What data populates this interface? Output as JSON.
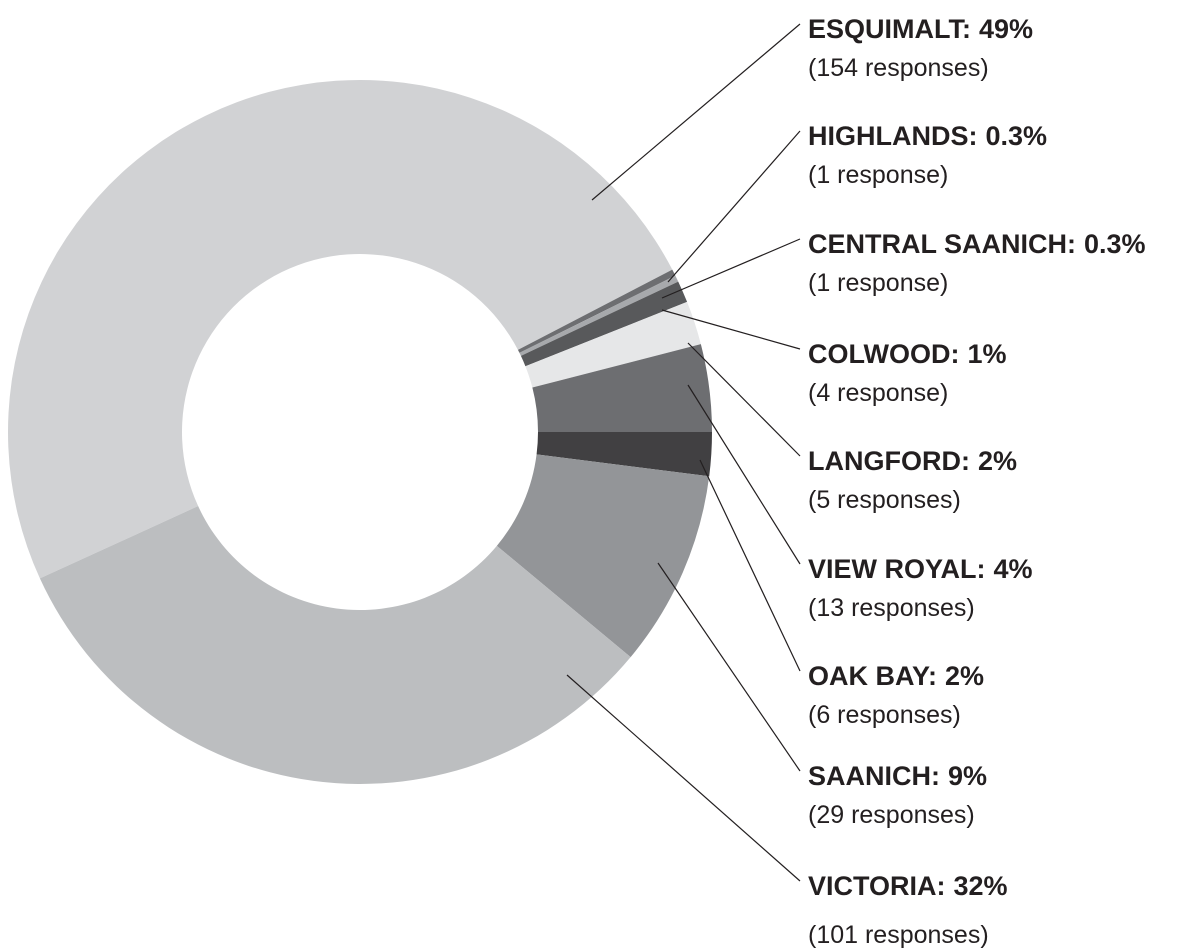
{
  "chart_data": {
    "type": "donut",
    "categories": [
      "ESQUIMALT:",
      "HIGHLANDS:",
      "CENTRAL SAANICH:",
      "COLWOOD:",
      "LANGFORD:",
      "VIEW ROYAL:",
      "OAK BAY:",
      "SAANICH:",
      "VICTORIA:"
    ],
    "values": [
      49,
      0.3,
      0.3,
      1,
      2,
      4,
      2,
      9,
      32
    ],
    "value_labels": [
      "49%",
      "0.3%",
      "0.3%",
      "1%",
      "2%",
      "4%",
      "2%",
      "9%",
      "32%"
    ],
    "responses": [
      "(154 responses)",
      "(1 response)",
      "(1 response)",
      "(4 response)",
      "(5 responses)",
      "(13 responses)",
      "(6 responses)",
      "(29 responses)",
      "(101 responses)"
    ],
    "colors": [
      "#d1d2d4",
      "#6d6e71",
      "#a7a9ac",
      "#58595b",
      "#e6e7e8",
      "#6d6e71",
      "#414042",
      "#939598",
      "#bcbec0"
    ]
  }
}
